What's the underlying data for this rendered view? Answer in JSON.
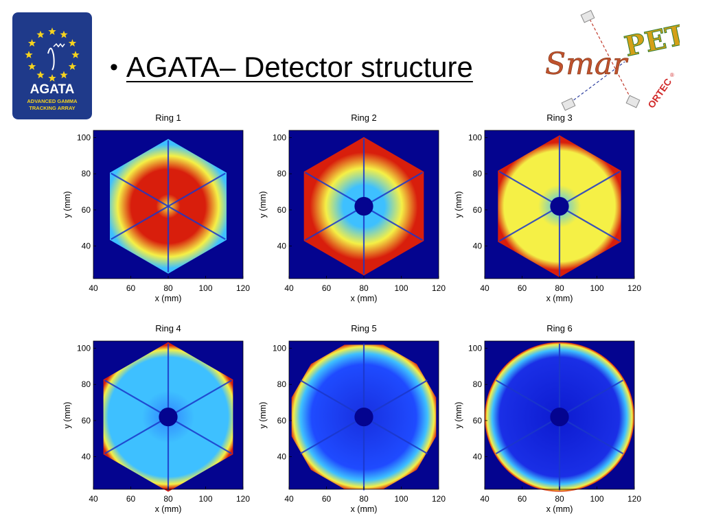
{
  "slide": {
    "bullet": "•",
    "title": "AGATA– Detector structure"
  },
  "logos": {
    "agata": {
      "name": "AGATA",
      "line1": "ADVANCED GAMMA",
      "line2": "TRACKING ARRAY",
      "bg_color": "#1f3a8a",
      "star_color": "#f6d31e"
    },
    "smartpet": {
      "word1": "Smar",
      "word2": "PET",
      "brand": "ORTEC",
      "reg": "®",
      "text_color": "#c0522d",
      "brand_color": "#d12a2a"
    }
  },
  "chart_data": [
    {
      "type": "heatmap",
      "title": "Ring 1",
      "xlabel": "x (mm)",
      "ylabel": "y (mm)",
      "xlim": [
        40,
        120
      ],
      "ylim": [
        22,
        104
      ],
      "xticks": [
        40,
        60,
        80,
        100,
        120
      ],
      "yticks": [
        100,
        80,
        60,
        40
      ],
      "shape": "hexagon",
      "radius_mm": 36,
      "core_hole_radius_mm": 0,
      "intensity_profile": "central hot lobes per segment",
      "colors": {
        "background": "#04048f",
        "low": "#3ec0ff",
        "mid": "#f5f046",
        "high": "#d81e0c"
      }
    },
    {
      "type": "heatmap",
      "title": "Ring 2",
      "xlabel": "x (mm)",
      "ylabel": "y (mm)",
      "xlim": [
        40,
        120
      ],
      "ylim": [
        22,
        104
      ],
      "xticks": [
        40,
        60,
        80,
        100,
        120
      ],
      "yticks": [
        100,
        80,
        60,
        40
      ],
      "shape": "hexagon",
      "radius_mm": 37,
      "core_hole_radius_mm": 5,
      "intensity_profile": "hot outer half of segments",
      "colors": {
        "background": "#04048f",
        "low": "#3ec0ff",
        "mid": "#f5f046",
        "high": "#d81e0c"
      }
    },
    {
      "type": "heatmap",
      "title": "Ring 3",
      "xlabel": "x (mm)",
      "ylabel": "y (mm)",
      "xlim": [
        40,
        120
      ],
      "ylim": [
        22,
        104
      ],
      "xticks": [
        40,
        60,
        80,
        100,
        120
      ],
      "yticks": [
        100,
        80,
        60,
        40
      ],
      "shape": "hexagon",
      "radius_mm": 38,
      "core_hole_radius_mm": 5,
      "intensity_profile": "yellow segments with hot rim",
      "colors": {
        "background": "#04048f",
        "low": "#3ec0ff",
        "mid": "#f5f046",
        "high": "#d81e0c"
      }
    },
    {
      "type": "heatmap",
      "title": "Ring 4",
      "xlabel": "x (mm)",
      "ylabel": "y (mm)",
      "xlim": [
        40,
        120
      ],
      "ylim": [
        22,
        104
      ],
      "xticks": [
        40,
        60,
        80,
        100,
        120
      ],
      "yticks": [
        100,
        80,
        60,
        40
      ],
      "shape": "hexagon",
      "radius_mm": 40,
      "core_hole_radius_mm": 5,
      "intensity_profile": "cyan interior with hot rim",
      "colors": {
        "background": "#04048f",
        "low": "#3ec0ff",
        "mid": "#f5f046",
        "high": "#d81e0c"
      }
    },
    {
      "type": "heatmap",
      "title": "Ring 5",
      "xlabel": "x (mm)",
      "ylabel": "y (mm)",
      "xlim": [
        40,
        120
      ],
      "ylim": [
        22,
        104
      ],
      "xticks": [
        40,
        60,
        80,
        100,
        120
      ],
      "yticks": [
        100,
        80,
        60,
        40
      ],
      "shape": "dodecagon",
      "radius_mm": 40,
      "core_hole_radius_mm": 5,
      "intensity_profile": "blue interior with hot rim arcs",
      "colors": {
        "background": "#04048f",
        "low": "#3ec0ff",
        "mid": "#f5f046",
        "high": "#d81e0c"
      }
    },
    {
      "type": "heatmap",
      "title": "Ring 6",
      "xlabel": "x (mm)",
      "ylabel": "y (mm)",
      "xlim": [
        40,
        120
      ],
      "ylim": [
        22,
        104
      ],
      "xticks": [
        40,
        60,
        80,
        100,
        120
      ],
      "yticks": [
        100,
        80,
        60,
        40
      ],
      "shape": "circle",
      "radius_mm": 40,
      "core_hole_radius_mm": 5,
      "intensity_profile": "dark blue interior with thin hot rim",
      "colors": {
        "background": "#04048f",
        "low": "#3ec0ff",
        "mid": "#f5f046",
        "high": "#d81e0c"
      }
    }
  ]
}
